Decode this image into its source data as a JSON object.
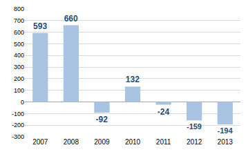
{
  "chart_data": {
    "type": "bar",
    "categories": [
      "2007",
      "2008",
      "2009",
      "2010",
      "2011",
      "2012",
      "2013"
    ],
    "values": [
      593,
      660,
      -92,
      132,
      -24,
      -159,
      -194
    ],
    "color": "#a9c4e2",
    "ylim": [
      -300,
      800
    ],
    "yticks": [
      -300,
      -200,
      -100,
      0,
      100,
      200,
      300,
      400,
      500,
      600,
      700,
      800
    ],
    "grid": true,
    "data_labels": true
  }
}
